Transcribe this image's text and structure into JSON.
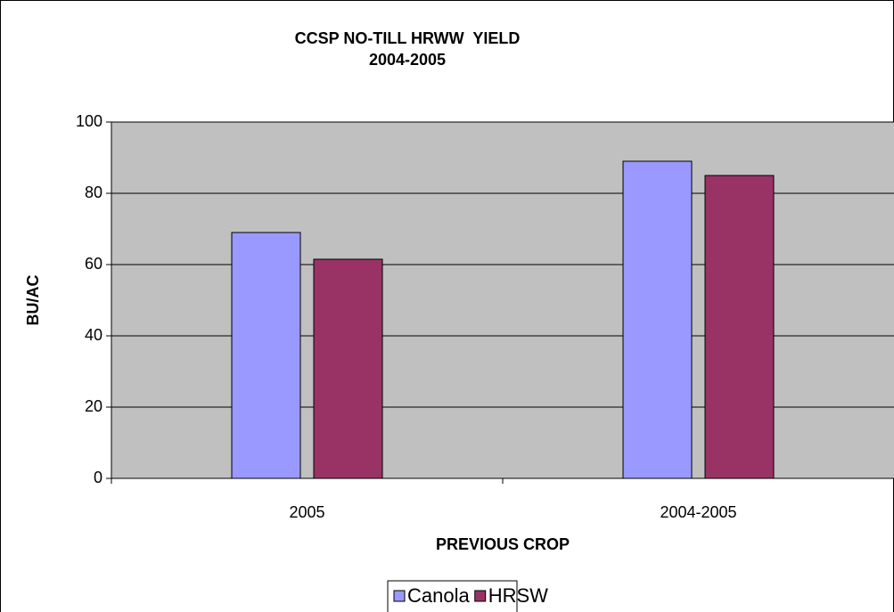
{
  "chart_data": {
    "type": "bar",
    "title": "CCSP NO-TILL HRWW  YIELD",
    "subtitle": "2004-2005",
    "y_label": "BU/AC",
    "x_label": "PREVIOUS CROP",
    "categories": [
      "2005",
      "2004-2005"
    ],
    "series": [
      {
        "name": "Canola",
        "color": "#9999ff",
        "values": [
          69,
          89
        ]
      },
      {
        "name": "HRSW",
        "color": "#993366",
        "values": [
          61.5,
          85
        ]
      }
    ],
    "ylim": [
      0,
      100
    ],
    "yticks": [
      0,
      20,
      40,
      60,
      80,
      100
    ],
    "grid": true,
    "plot_background": "#c0c0c0",
    "legend": "bottom"
  }
}
